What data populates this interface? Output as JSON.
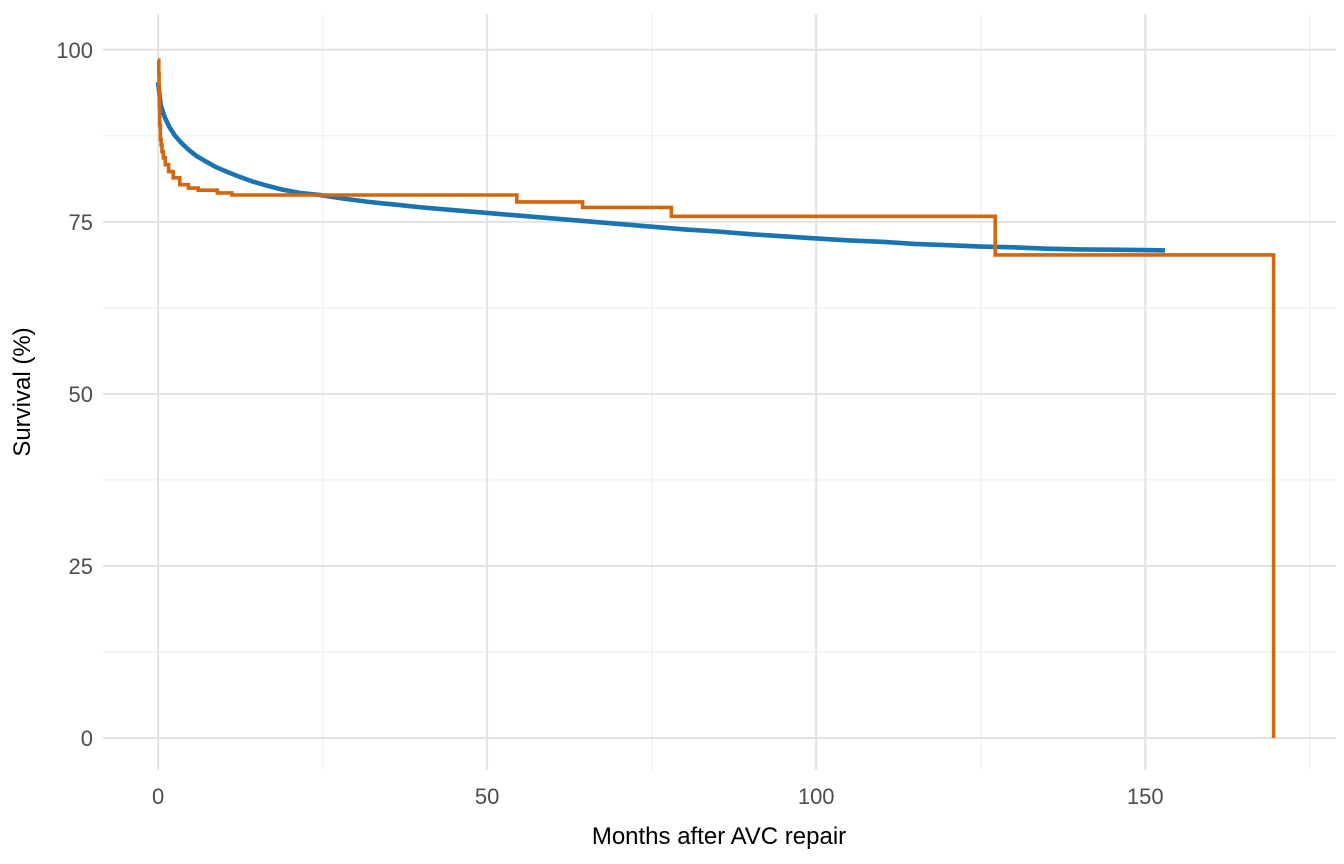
{
  "chart_data": {
    "type": "line",
    "title": "",
    "xlabel": "Months after AVC repair",
    "ylabel": "Survival (%)",
    "xlim": [
      -8.4,
      179
    ],
    "ylim": [
      0,
      105.2
    ],
    "x_ticks": [
      0,
      50,
      100,
      150
    ],
    "x_minor_ticks": [
      25,
      75,
      125,
      175
    ],
    "y_ticks": [
      0,
      25,
      50,
      75,
      100
    ],
    "y_minor_ticks": [
      12.5,
      37.5,
      62.5,
      87.5
    ],
    "grid": "major+minor, light grey on white (ggplot minimal theme)",
    "legend": "none",
    "colors": {
      "observed_step": "#d3670e",
      "model_smooth": "#1a74b2",
      "grid_major": "#e3e3e3",
      "grid_minor": "#efefef",
      "tick_text": "#4d4d4d",
      "axis_title_text": "#000000",
      "background": "#ffffff"
    },
    "series": [
      {
        "name": "observed-kaplan-meier",
        "style": "step",
        "color": "#d3670e",
        "stroke_width": 3.6,
        "points": [
          [
            0,
            98.5
          ],
          [
            0.1,
            96.5
          ],
          [
            0.15,
            94.0
          ],
          [
            0.2,
            91.5
          ],
          [
            0.25,
            89.0
          ],
          [
            0.35,
            87.0
          ],
          [
            0.45,
            86.2
          ],
          [
            0.6,
            85.2
          ],
          [
            0.8,
            84.3
          ],
          [
            1.1,
            83.3
          ],
          [
            1.6,
            82.3
          ],
          [
            2.3,
            81.4
          ],
          [
            3.3,
            80.4
          ],
          [
            4.6,
            79.9
          ],
          [
            6.1,
            79.6
          ],
          [
            9.0,
            79.2
          ],
          [
            11.2,
            78.9
          ],
          [
            54.5,
            77.9
          ],
          [
            64.5,
            77.1
          ],
          [
            78,
            75.8
          ],
          [
            127.2,
            70.2
          ],
          [
            169.5,
            0
          ]
        ]
      },
      {
        "name": "parametric-model",
        "style": "smooth",
        "color": "#1a74b2",
        "stroke_width": 4.6,
        "points": [
          [
            0,
            95.3
          ],
          [
            0.4,
            92.0
          ],
          [
            1,
            90.2
          ],
          [
            1.7,
            88.8
          ],
          [
            2.5,
            87.6
          ],
          [
            3.5,
            86.5
          ],
          [
            4.6,
            85.5
          ],
          [
            5.8,
            84.6
          ],
          [
            7.2,
            83.8
          ],
          [
            8.7,
            83.0
          ],
          [
            10.4,
            82.3
          ],
          [
            12.2,
            81.6
          ],
          [
            14.2,
            80.9
          ],
          [
            16.4,
            80.3
          ],
          [
            18.8,
            79.7
          ],
          [
            21.5,
            79.2
          ],
          [
            24.6,
            78.9
          ],
          [
            28,
            78.4
          ],
          [
            32,
            77.9
          ],
          [
            36,
            77.5
          ],
          [
            40,
            77.1
          ],
          [
            45,
            76.7
          ],
          [
            50,
            76.3
          ],
          [
            55,
            75.9
          ],
          [
            60,
            75.5
          ],
          [
            65,
            75.1
          ],
          [
            70,
            74.7
          ],
          [
            75,
            74.3
          ],
          [
            80,
            73.9
          ],
          [
            85,
            73.6
          ],
          [
            90,
            73.2
          ],
          [
            95,
            72.9
          ],
          [
            100,
            72.6
          ],
          [
            105,
            72.3
          ],
          [
            110,
            72.1
          ],
          [
            115,
            71.8
          ],
          [
            120,
            71.6
          ],
          [
            125,
            71.4
          ],
          [
            130,
            71.3
          ],
          [
            135,
            71.1
          ],
          [
            140,
            71.0
          ],
          [
            145,
            70.95
          ],
          [
            150,
            70.9
          ],
          [
            153,
            70.85
          ]
        ]
      }
    ]
  }
}
